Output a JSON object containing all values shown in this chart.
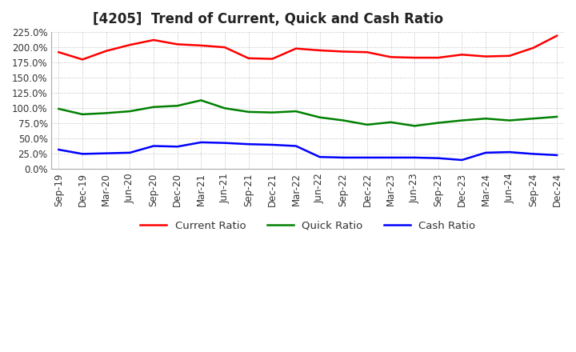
{
  "title": "[4205]  Trend of Current, Quick and Cash Ratio",
  "x_labels": [
    "Sep-19",
    "Dec-19",
    "Mar-20",
    "Jun-20",
    "Sep-20",
    "Dec-20",
    "Mar-21",
    "Jun-21",
    "Sep-21",
    "Dec-21",
    "Mar-22",
    "Jun-22",
    "Sep-22",
    "Dec-22",
    "Mar-23",
    "Jun-23",
    "Sep-23",
    "Dec-23",
    "Mar-24",
    "Jun-24",
    "Sep-24",
    "Dec-24"
  ],
  "current_ratio": [
    192,
    180,
    194,
    204,
    212,
    205,
    203,
    200,
    182,
    181,
    198,
    195,
    193,
    192,
    184,
    183,
    183,
    188,
    185,
    186,
    199,
    219
  ],
  "quick_ratio": [
    99,
    90,
    92,
    95,
    102,
    104,
    113,
    100,
    94,
    93,
    95,
    85,
    80,
    73,
    77,
    71,
    76,
    80,
    83,
    80,
    83,
    86
  ],
  "cash_ratio": [
    32,
    25,
    26,
    27,
    38,
    37,
    44,
    43,
    41,
    40,
    38,
    20,
    19,
    19,
    19,
    19,
    18,
    15,
    27,
    28,
    25,
    23
  ],
  "ylim": [
    0,
    225
  ],
  "yticks": [
    0,
    25,
    50,
    75,
    100,
    125,
    150,
    175,
    200,
    225
  ],
  "current_color": "#FF0000",
  "quick_color": "#008000",
  "cash_color": "#0000FF",
  "background_color": "#FFFFFF",
  "grid_color": "#BBBBBB",
  "title_fontsize": 12,
  "tick_fontsize": 8.5,
  "legend_fontsize": 9.5
}
